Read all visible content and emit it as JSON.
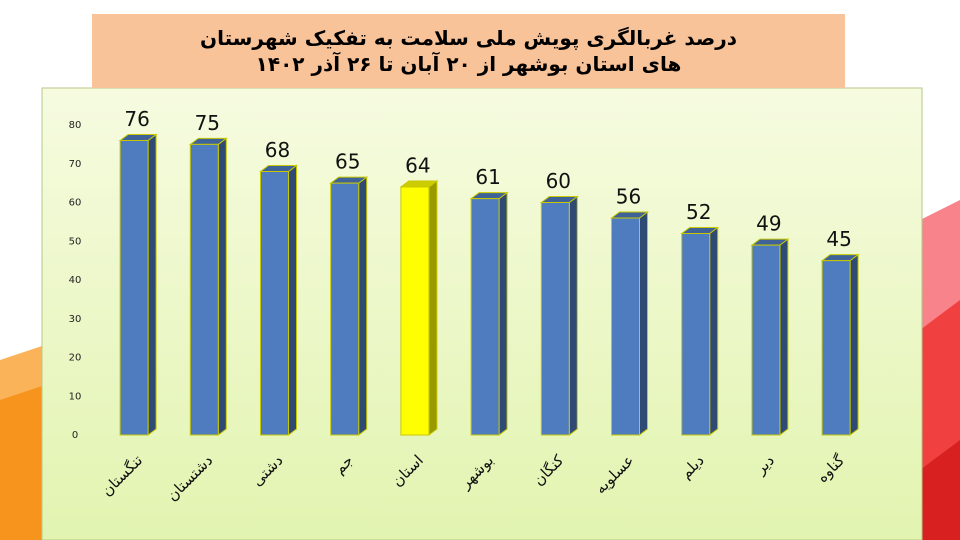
{
  "chart_data": {
    "type": "bar",
    "title": "درصد غربالگری پویش ملی سلامت به تفکیک شهرستان های استان بوشهر از ۲۰ آبان تا ۲۶ آذر ۱۴۰۲",
    "categories": [
      "تنگستان",
      "دشتستان",
      "دشتی",
      "جم",
      "استان",
      "بوشهر",
      "کنگان",
      "عسلویه",
      "دیلم",
      "دیر",
      "گناوه"
    ],
    "values": [
      76,
      75,
      68,
      65,
      64,
      61,
      60,
      56,
      52,
      49,
      45
    ],
    "colors": [
      "#4f7cbf",
      "#4f7cbf",
      "#4f7cbf",
      "#4f7cbf",
      "#ffff00",
      "#4f7cbf",
      "#4f7cbf",
      "#4f7cbf",
      "#4f7cbf",
      "#4f7cbf",
      "#4f7cbf"
    ],
    "ylim": [
      0,
      80
    ],
    "yticks": [
      0,
      10,
      20,
      30,
      40,
      50,
      60,
      70,
      80
    ],
    "grid": false
  }
}
